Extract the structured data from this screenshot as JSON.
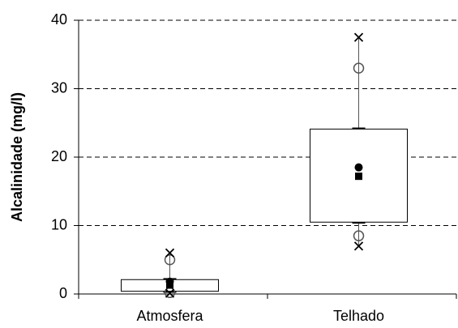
{
  "chart_data": {
    "type": "box",
    "ylabel": "Alcalinidade (mg/l)",
    "categories": [
      "Atmosfera",
      "Telhado"
    ],
    "boxes": [
      {
        "q1": 0.4,
        "q3": 2.1,
        "whisker_low": 0.3,
        "whisker_high": 2.2,
        "p5": 0.2,
        "p95": 5,
        "min": 0.1,
        "max": 6,
        "mean": 1.8,
        "median": 1.3
      },
      {
        "q1": 10.5,
        "q3": 24.1,
        "whisker_low": 10.4,
        "whisker_high": 24.2,
        "p5": 8.5,
        "p95": 33,
        "min": 7,
        "max": 37.5,
        "mean": 18.5,
        "median": 17.2
      }
    ],
    "ylim": [
      0,
      40
    ],
    "yticks": [
      0,
      10,
      20,
      30,
      40
    ],
    "grid": true
  }
}
